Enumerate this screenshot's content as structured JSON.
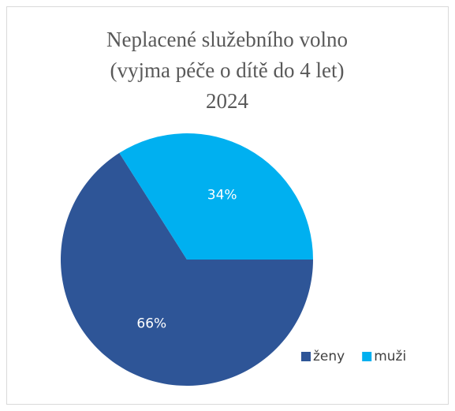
{
  "chart_data": {
    "type": "pie",
    "title": [
      "Neplacené služebního volno",
      "(vyjma péče o dítě do 4 let)",
      "2024"
    ],
    "categories": [
      "ženy",
      "muži"
    ],
    "values": [
      66,
      34
    ],
    "value_labels": [
      "66%",
      "34%"
    ],
    "colors": [
      "#2e5597",
      "#00b0f0"
    ],
    "legend": "bottom-right"
  }
}
